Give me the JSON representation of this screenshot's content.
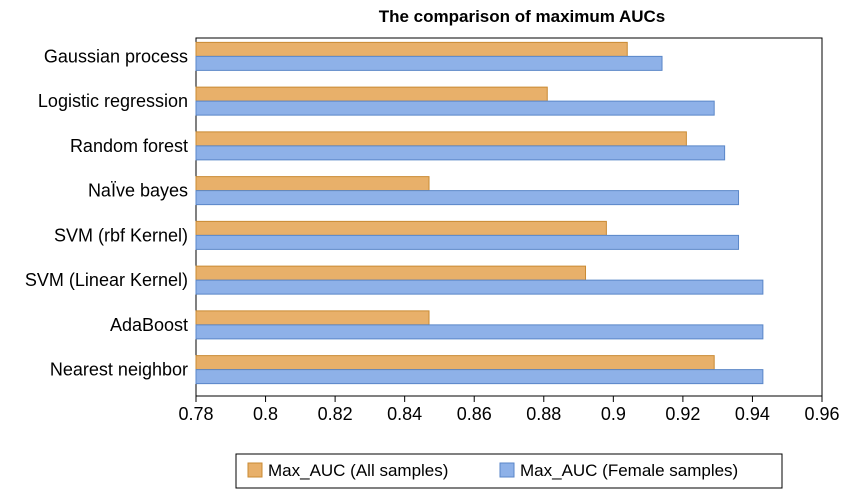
{
  "chart_data": {
    "type": "bar",
    "orientation": "horizontal",
    "title": "The comparison of maximum AUCs",
    "xlabel": "",
    "ylabel": "",
    "categories": [
      "Gaussian process",
      "Logistic regression",
      "Random forest",
      "NaÏve bayes",
      "SVM (rbf Kernel)",
      "SVM (Linear Kernel)",
      "AdaBoost",
      "Nearest neighbor"
    ],
    "series": [
      {
        "name": "Max_AUC (All samples)",
        "color": "#E8B06A",
        "edge": "#C98A33",
        "values": [
          0.904,
          0.881,
          0.921,
          0.847,
          0.898,
          0.892,
          0.847,
          0.929
        ]
      },
      {
        "name": "Max_AUC (Female samples)",
        "color": "#8EB1E8",
        "edge": "#5A86C8",
        "values": [
          0.914,
          0.929,
          0.932,
          0.936,
          0.936,
          0.943,
          0.943,
          0.943
        ]
      }
    ],
    "xlim": [
      0.78,
      0.96
    ],
    "xticks": [
      "0.78",
      "0.8",
      "0.82",
      "0.84",
      "0.86",
      "0.88",
      "0.9",
      "0.92",
      "0.94",
      "0.96"
    ],
    "grid": false,
    "legend_position": "bottom"
  }
}
